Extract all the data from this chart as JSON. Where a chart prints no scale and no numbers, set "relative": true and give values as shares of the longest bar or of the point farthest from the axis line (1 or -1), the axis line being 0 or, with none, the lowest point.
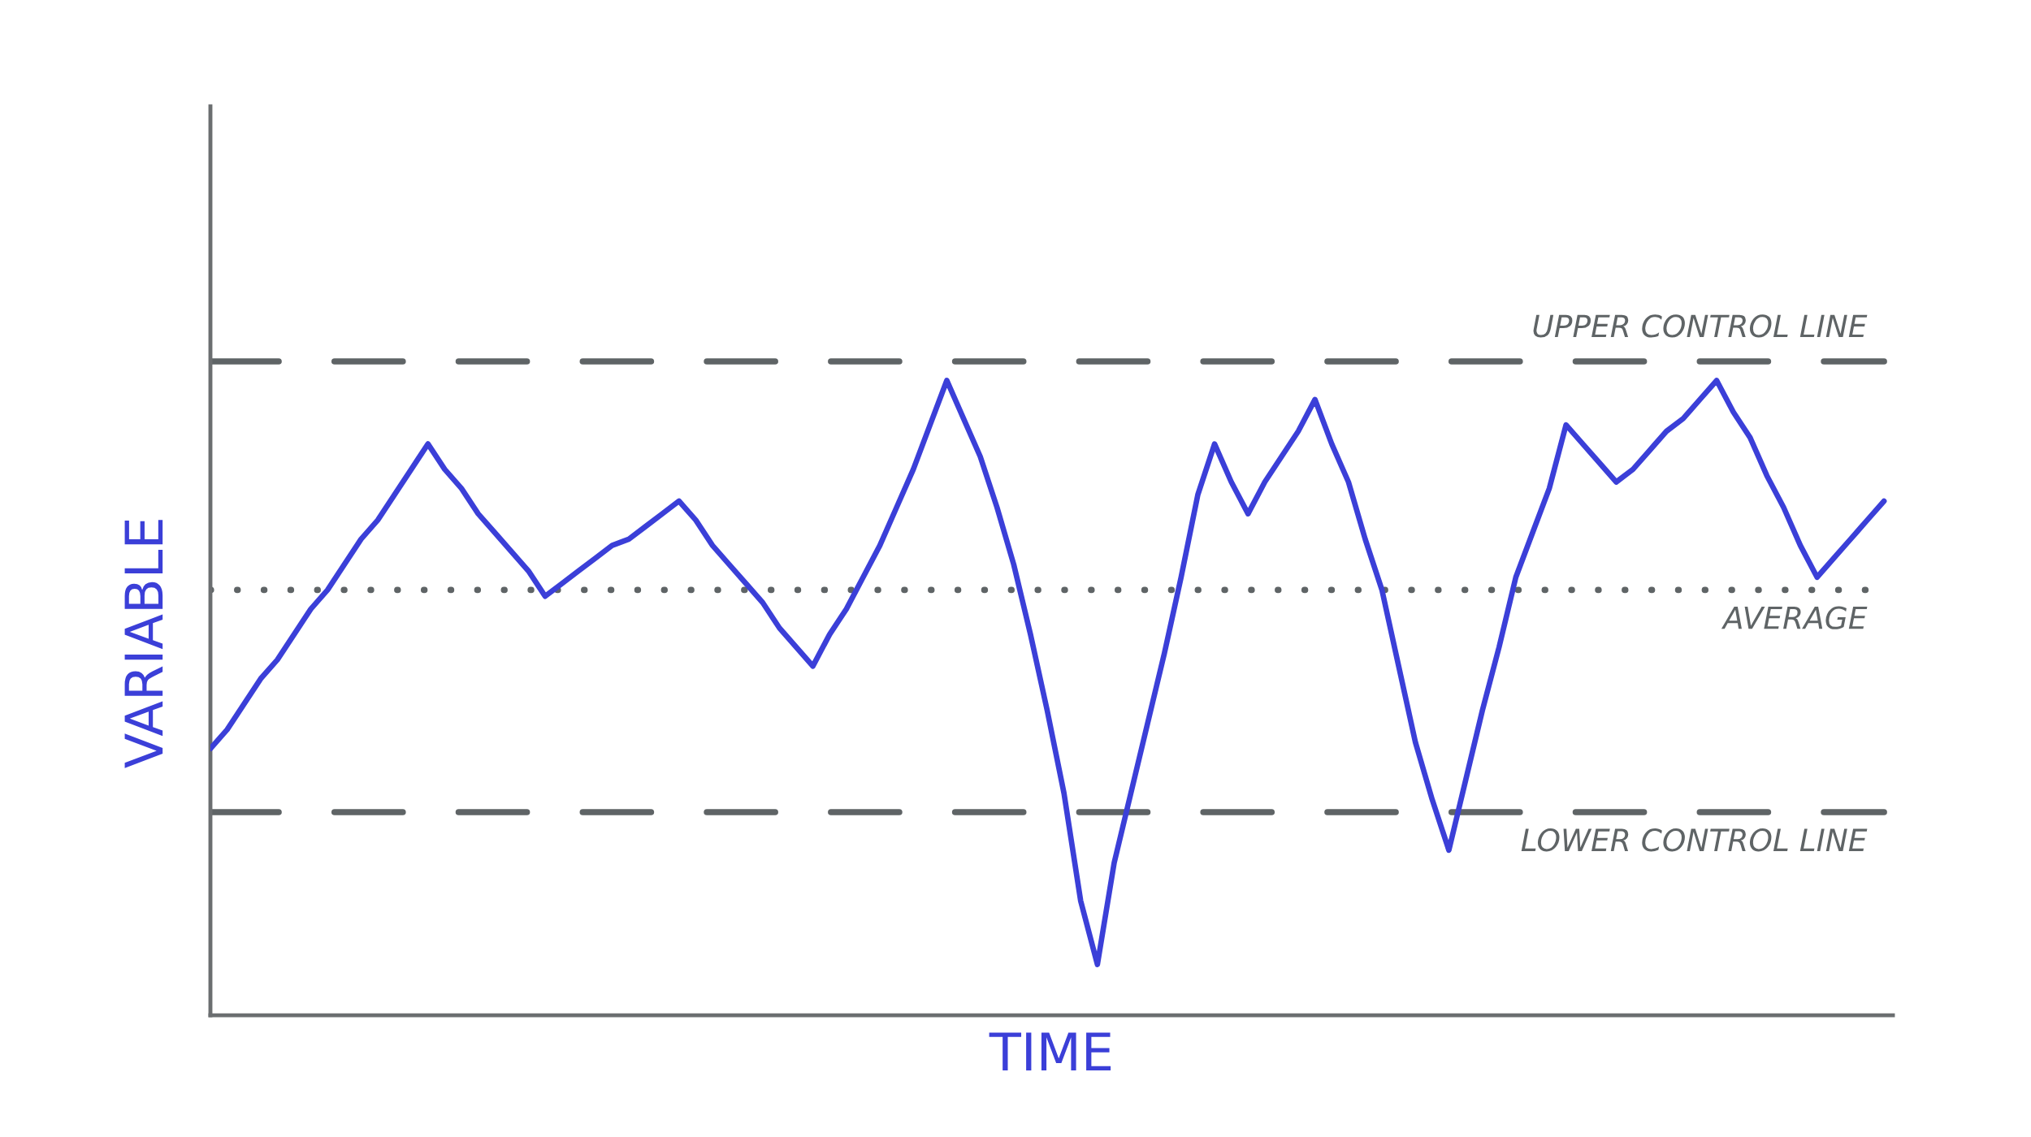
{
  "chart_data": {
    "type": "line",
    "xlabel": "TIME",
    "ylabel": "VARIABLE",
    "relative": true,
    "tick_labels": false,
    "categories": [
      null,
      null,
      null,
      null,
      null,
      null,
      null,
      null,
      null,
      null,
      null,
      null,
      null,
      null,
      null,
      null,
      null,
      null,
      null,
      null,
      null,
      null,
      null,
      null,
      null,
      null,
      null,
      null,
      null,
      null,
      null,
      null,
      null,
      null,
      null,
      null,
      null,
      null,
      null,
      null,
      null,
      null,
      null,
      null,
      null,
      null,
      null,
      null,
      null,
      null,
      null,
      null,
      null,
      null,
      null,
      null,
      null,
      null,
      null,
      null,
      null,
      null,
      null,
      null,
      null,
      null,
      null,
      null,
      null,
      null,
      null,
      null,
      null,
      null,
      null,
      null,
      null,
      null,
      null,
      null,
      null,
      null,
      null,
      null,
      null,
      null,
      null,
      null,
      null,
      null,
      null,
      null,
      null,
      null,
      null,
      null,
      null,
      null,
      null,
      null,
      null
    ],
    "series": [
      {
        "color": "#3b3fd8",
        "values": [
          0.42,
          0.45,
          0.49,
          0.53,
          0.56,
          0.6,
          0.64,
          0.67,
          0.71,
          0.75,
          0.78,
          0.82,
          0.86,
          0.9,
          0.86,
          0.83,
          0.79,
          0.76,
          0.73,
          0.7,
          0.66,
          0.68,
          0.7,
          0.72,
          0.74,
          0.75,
          0.77,
          0.79,
          0.81,
          0.78,
          0.74,
          0.71,
          0.68,
          0.65,
          0.61,
          0.58,
          0.55,
          0.6,
          0.64,
          0.69,
          0.74,
          0.8,
          0.86,
          0.93,
          1.0,
          0.94,
          0.88,
          0.8,
          0.71,
          0.6,
          0.48,
          0.35,
          0.18,
          0.08,
          0.24,
          0.35,
          0.46,
          0.57,
          0.69,
          0.82,
          0.9,
          0.84,
          0.79,
          0.84,
          0.88,
          0.92,
          0.97,
          0.9,
          0.84,
          0.75,
          0.67,
          0.55,
          0.43,
          0.34,
          0.26,
          0.37,
          0.48,
          0.58,
          0.69,
          0.76,
          0.83,
          0.93,
          0.9,
          0.87,
          0.84,
          0.86,
          0.89,
          0.92,
          0.94,
          0.97,
          1.0,
          0.95,
          0.91,
          0.85,
          0.8,
          0.74,
          0.69,
          0.72,
          0.75,
          0.78,
          0.81
        ]
      }
    ],
    "ref_lines": [
      {
        "axis": "y",
        "value": 1.03,
        "label": "UPPER CONTROL LINE",
        "color": "#5f6466",
        "line_style": "dashed"
      },
      {
        "axis": "y",
        "value": 0.67,
        "label": "AVERAGE",
        "color": "#5f6466",
        "line_style": "dotted"
      },
      {
        "axis": "y",
        "value": 0.32,
        "label": "LOWER CONTROL LINE",
        "color": "#5f6466",
        "line_style": "dashed"
      }
    ]
  }
}
